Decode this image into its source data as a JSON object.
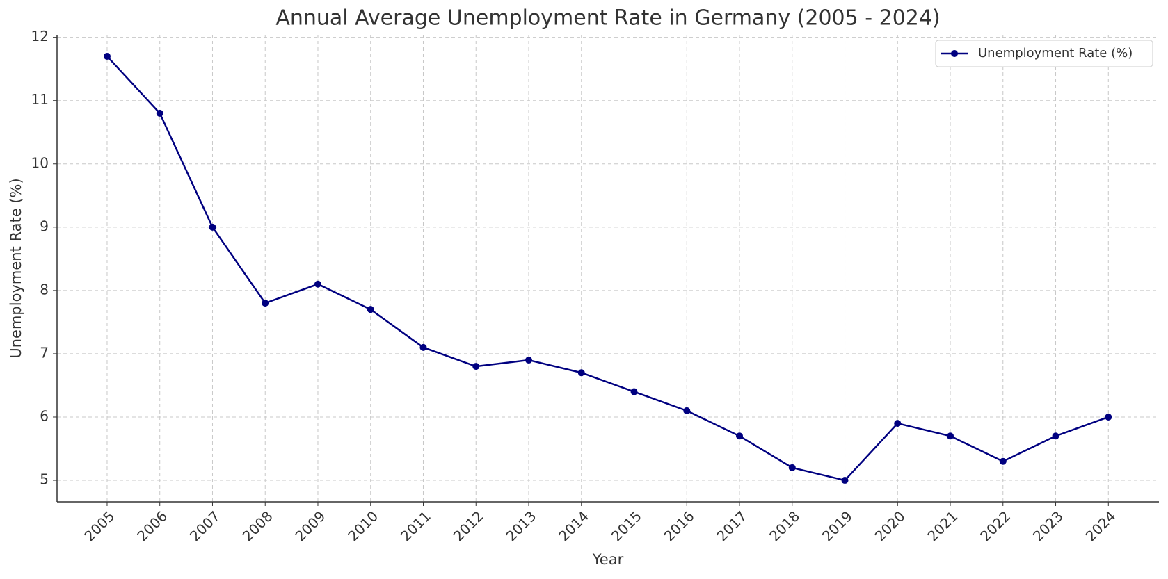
{
  "chart_data": {
    "type": "line",
    "title": "Annual Average Unemployment Rate in Germany (2005 - 2024)",
    "x_label": "Year",
    "y_label": "Unemployment Rate (%)",
    "x": [
      2005,
      2006,
      2007,
      2008,
      2009,
      2010,
      2011,
      2012,
      2013,
      2014,
      2015,
      2016,
      2017,
      2018,
      2019,
      2020,
      2021,
      2022,
      2023,
      2024
    ],
    "series": [
      {
        "name": "Unemployment Rate (%)",
        "color": "#000080",
        "values": [
          11.7,
          10.8,
          9.0,
          7.8,
          8.1,
          7.7,
          7.1,
          6.8,
          6.9,
          6.7,
          6.4,
          6.1,
          5.7,
          5.2,
          5.0,
          5.9,
          5.7,
          5.3,
          5.7,
          6.0
        ]
      }
    ],
    "xlim": [
      2004.05,
      2024.96
    ],
    "xticks": [
      2005,
      2006,
      2007,
      2008,
      2009,
      2010,
      2011,
      2012,
      2013,
      2014,
      2015,
      2016,
      2017,
      2018,
      2019,
      2020,
      2021,
      2022,
      2023,
      2024
    ],
    "ylim": [
      4.66,
      12.04
    ],
    "yticks": [
      5,
      6,
      7,
      8,
      9,
      10,
      11,
      12
    ],
    "grid": true,
    "legend": "upper right"
  }
}
